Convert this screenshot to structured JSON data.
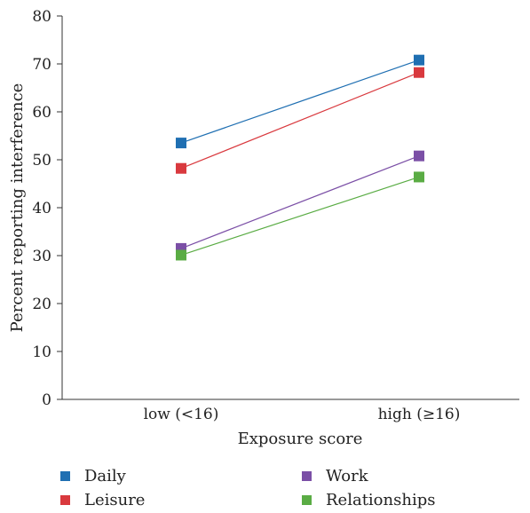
{
  "chart_data": {
    "type": "line",
    "x_categories": [
      "low (<16)",
      "high (≥16)"
    ],
    "xlabel": "Exposure score",
    "ylabel": "Percent reporting interference",
    "ylim": [
      0,
      80
    ],
    "yticks": [
      "0",
      "10",
      "20",
      "30",
      "40",
      "50",
      "60",
      "70",
      "80"
    ],
    "grid": false,
    "legend_position": "bottom",
    "series": [
      {
        "name": "Daily",
        "color": "#1f6fb2",
        "values": [
          53.5,
          70.8
        ]
      },
      {
        "name": "Leisure",
        "color": "#d9393e",
        "values": [
          48.2,
          68.2
        ]
      },
      {
        "name": "Work",
        "color": "#7b4fa6",
        "values": [
          31.5,
          50.8
        ]
      },
      {
        "name": "Relationships",
        "color": "#5aac44",
        "values": [
          30.1,
          46.4
        ]
      }
    ]
  }
}
